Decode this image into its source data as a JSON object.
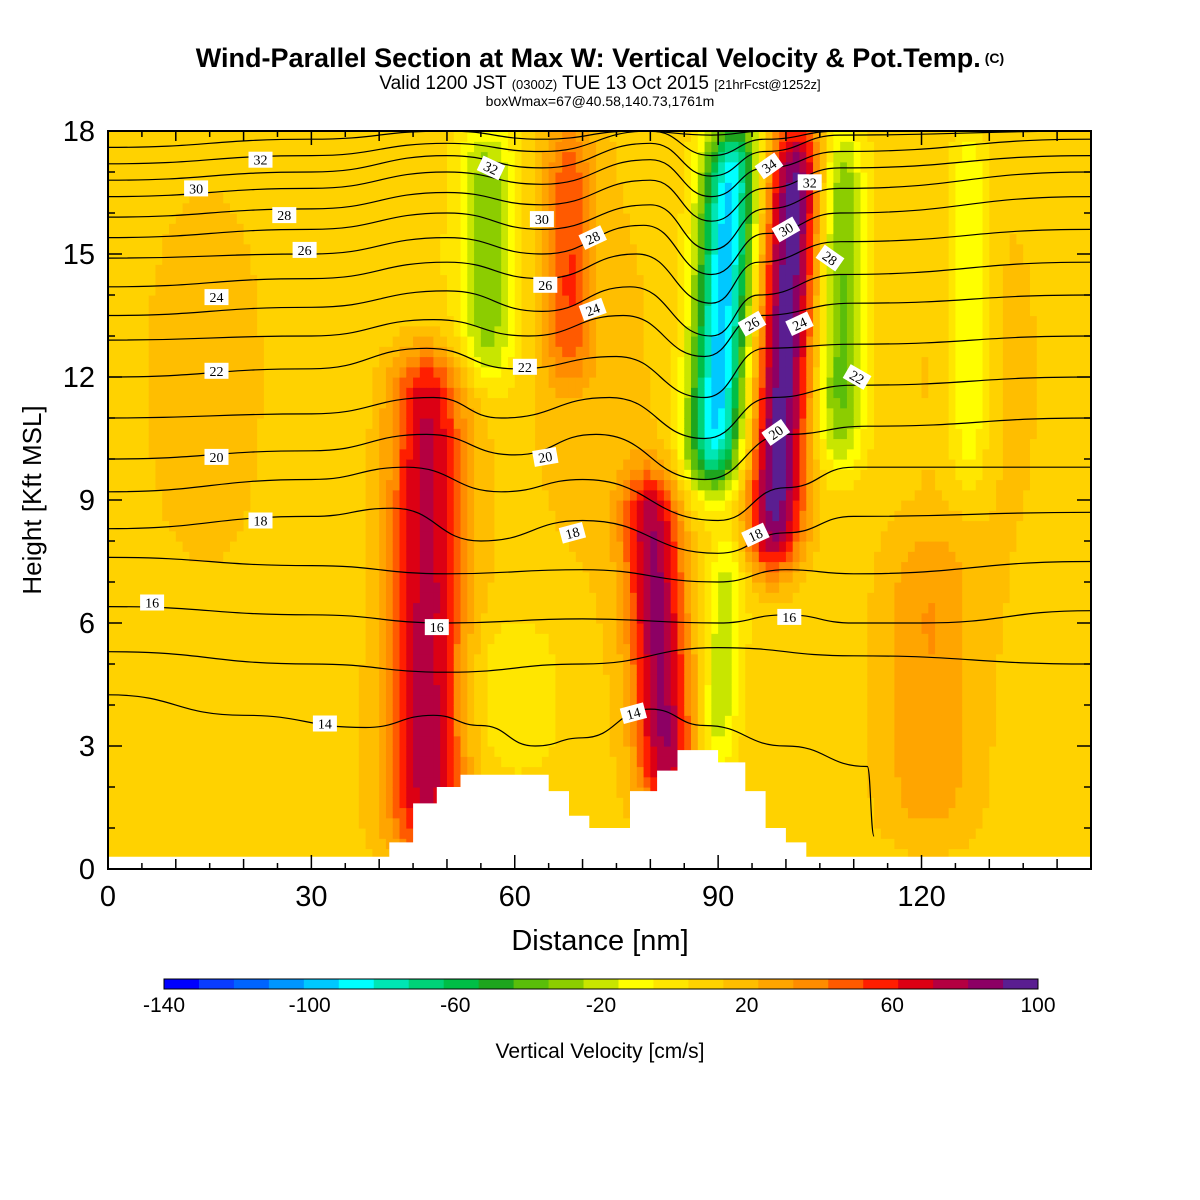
{
  "header": {
    "title": "Wind-Parallel Section at Max W: Vertical Velocity & Pot.Temp.",
    "copyright": "(C)",
    "valid_prefix": "Valid 1200 JST",
    "valid_utc": "(0300Z)",
    "valid_date": "TUE 13 Oct 2015",
    "forecast": "[21hrFcst@1252z]",
    "box_wmax": "boxWmax=67@40.58,140.73,1761m"
  },
  "chart_data": {
    "type": "heatmap",
    "title": "Wind-Parallel Section at Max W: Vertical Velocity & Pot.Temp.",
    "xlabel": "Distance [nm]",
    "ylabel": "Height [Kft MSL]",
    "xlim": [
      0,
      145
    ],
    "ylim": [
      0,
      18
    ],
    "x_ticks": [
      0,
      30,
      60,
      90,
      120
    ],
    "y_ticks": [
      0,
      3,
      6,
      9,
      12,
      15,
      18
    ],
    "colorbar": {
      "label": "Vertical Velocity [cm/s]",
      "tick_labels": [
        "-140",
        "-100",
        "-60",
        "-20",
        "20",
        "60",
        "100"
      ],
      "tick_values": [
        -140,
        -100,
        -60,
        -20,
        20,
        60,
        100
      ],
      "range": [
        -140,
        100
      ],
      "levels": [
        -140,
        -130,
        -120,
        -110,
        -100,
        -90,
        -80,
        -70,
        -60,
        -50,
        -40,
        -30,
        -20,
        -10,
        0,
        10,
        20,
        30,
        40,
        50,
        60,
        70,
        80,
        90,
        100
      ],
      "colors": [
        "#0000ff",
        "#0a3cff",
        "#0064ff",
        "#0096ff",
        "#00c8ff",
        "#00ffff",
        "#00e6b4",
        "#00d278",
        "#00be46",
        "#1ea51e",
        "#5abe0a",
        "#8ccd00",
        "#c8e600",
        "#ffff00",
        "#ffe600",
        "#ffd200",
        "#ffbe00",
        "#ffa500",
        "#ff8c00",
        "#ff5a00",
        "#ff1e00",
        "#dc0014",
        "#b40041",
        "#8c0064",
        "#5a1e91"
      ]
    },
    "terrain_profile": [
      [
        0,
        0.3
      ],
      [
        41.5,
        0.3
      ],
      [
        41.5,
        0.65
      ],
      [
        45,
        0.65
      ],
      [
        45,
        1.6
      ],
      [
        48.5,
        1.6
      ],
      [
        48.5,
        2.0
      ],
      [
        52,
        2.0
      ],
      [
        52,
        2.3
      ],
      [
        65,
        2.3
      ],
      [
        65,
        1.9
      ],
      [
        68,
        1.9
      ],
      [
        68,
        1.3
      ],
      [
        71,
        1.3
      ],
      [
        71,
        1.0
      ],
      [
        77,
        1.0
      ],
      [
        77,
        1.9
      ],
      [
        81,
        1.9
      ],
      [
        81,
        2.4
      ],
      [
        84,
        2.4
      ],
      [
        84,
        2.9
      ],
      [
        90,
        2.9
      ],
      [
        90,
        2.6
      ],
      [
        94,
        2.6
      ],
      [
        94,
        1.9
      ],
      [
        97,
        1.9
      ],
      [
        97,
        1.0
      ],
      [
        100,
        1.0
      ],
      [
        100,
        0.65
      ],
      [
        103,
        0.65
      ],
      [
        103,
        0.3
      ],
      [
        145,
        0.3
      ]
    ],
    "velocity_features": [
      {
        "x": 47,
        "h_lo": 0.5,
        "h_hi": 12.5,
        "w": 4.0,
        "v": 70
      },
      {
        "x": 80,
        "h_lo": 1.5,
        "h_hi": 9.5,
        "w": 3.0,
        "v": 75
      },
      {
        "x": 98.5,
        "h_lo": 7.5,
        "h_hi": 18,
        "w": 3.0,
        "v": 95
      },
      {
        "x": 68,
        "h_lo": 12,
        "h_hi": 18,
        "w": 2.5,
        "v": 40
      },
      {
        "x": 121,
        "h_lo": 1,
        "h_hi": 8,
        "w": 4.5,
        "v": 22
      },
      {
        "x": 89,
        "h_lo": 9.5,
        "h_hi": 18,
        "w": 3.0,
        "v": -110
      },
      {
        "x": 56,
        "h_lo": 12,
        "h_hi": 18,
        "w": 3.0,
        "v": -45
      },
      {
        "x": 108,
        "h_lo": 10,
        "h_hi": 18,
        "w": 2.5,
        "v": -48
      },
      {
        "x": 127,
        "h_lo": 9.5,
        "h_hi": 18,
        "w": 2.0,
        "v": -30
      },
      {
        "x": 60,
        "h_lo": 2.5,
        "h_hi": 6,
        "w": 5.0,
        "v": -18
      },
      {
        "x": 92,
        "h_lo": 2.5,
        "h_hi": 8,
        "w": 2.0,
        "v": -35
      }
    ],
    "theta_contours": [
      {
        "theta": 14,
        "points": [
          [
            0,
            4.25
          ],
          [
            20,
            3.75
          ],
          [
            38,
            3.45
          ],
          [
            48,
            3.75
          ],
          [
            55,
            3.5
          ],
          [
            63,
            3.0
          ],
          [
            70,
            3.2
          ],
          [
            80,
            3.9
          ],
          [
            88,
            3.5
          ],
          [
            100,
            3.0
          ],
          [
            112,
            2.5
          ],
          [
            113,
            0.8
          ]
        ]
      },
      {
        "theta": 15,
        "points": [
          [
            0,
            5.3
          ],
          [
            30,
            5.0
          ],
          [
            50,
            4.8
          ],
          [
            70,
            5.0
          ],
          [
            90,
            5.4
          ],
          [
            110,
            5.2
          ],
          [
            145,
            5.0
          ]
        ]
      },
      {
        "theta": 16,
        "points": [
          [
            0,
            6.4
          ],
          [
            30,
            6.2
          ],
          [
            50,
            6.0
          ],
          [
            70,
            6.1
          ],
          [
            90,
            6.0
          ],
          [
            100,
            6.2
          ],
          [
            110,
            6.0
          ],
          [
            120,
            6.0
          ],
          [
            145,
            6.3
          ]
        ]
      },
      {
        "theta": 17,
        "points": [
          [
            0,
            7.6
          ],
          [
            30,
            7.4
          ],
          [
            50,
            7.2
          ],
          [
            70,
            7.3
          ],
          [
            90,
            7.0
          ],
          [
            100,
            7.3
          ],
          [
            110,
            7.2
          ],
          [
            145,
            7.5
          ]
        ]
      },
      {
        "theta": 18,
        "points": [
          [
            0,
            8.3
          ],
          [
            30,
            8.6
          ],
          [
            42,
            8.8
          ],
          [
            55,
            8.0
          ],
          [
            70,
            8.5
          ],
          [
            90,
            7.7
          ],
          [
            100,
            8.2
          ],
          [
            110,
            8.6
          ],
          [
            145,
            8.7
          ]
        ]
      },
      {
        "theta": 19,
        "points": [
          [
            0,
            9.2
          ],
          [
            30,
            9.5
          ],
          [
            44,
            9.8
          ],
          [
            58,
            9.2
          ],
          [
            70,
            9.5
          ],
          [
            90,
            8.5
          ],
          [
            100,
            9.3
          ],
          [
            110,
            9.8
          ],
          [
            145,
            9.8
          ]
        ]
      },
      {
        "theta": 20,
        "points": [
          [
            0,
            10.0
          ],
          [
            30,
            10.2
          ],
          [
            47,
            10.6
          ],
          [
            60,
            10.1
          ],
          [
            72,
            10.6
          ],
          [
            88,
            9.5
          ],
          [
            100,
            10.6
          ],
          [
            112,
            10.8
          ],
          [
            145,
            11.0
          ]
        ]
      },
      {
        "theta": 21,
        "points": [
          [
            0,
            11.0
          ],
          [
            30,
            11.1
          ],
          [
            48,
            11.5
          ],
          [
            58,
            11.0
          ],
          [
            74,
            11.5
          ],
          [
            88,
            10.5
          ],
          [
            98,
            11.5
          ],
          [
            110,
            11.8
          ],
          [
            145,
            12.0
          ]
        ]
      },
      {
        "theta": 22,
        "points": [
          [
            0,
            12.0
          ],
          [
            30,
            12.2
          ],
          [
            47,
            12.7
          ],
          [
            60,
            12.2
          ],
          [
            75,
            12.5
          ],
          [
            88,
            11.5
          ],
          [
            97,
            12.7
          ],
          [
            110,
            12.8
          ],
          [
            145,
            13.0
          ]
        ]
      },
      {
        "theta": 23,
        "points": [
          [
            0,
            12.9
          ],
          [
            30,
            13.0
          ],
          [
            48,
            13.4
          ],
          [
            62,
            13.0
          ],
          [
            76,
            13.5
          ],
          [
            88,
            12.5
          ],
          [
            96,
            13.5
          ],
          [
            110,
            13.8
          ],
          [
            145,
            14.0
          ]
        ]
      },
      {
        "theta": 24,
        "points": [
          [
            0,
            13.5
          ],
          [
            30,
            13.7
          ],
          [
            50,
            14.1
          ],
          [
            64,
            13.6
          ],
          [
            77,
            14.2
          ],
          [
            89,
            13.0
          ],
          [
            96,
            14.0
          ],
          [
            108,
            14.5
          ],
          [
            145,
            14.8
          ]
        ]
      },
      {
        "theta": 25,
        "points": [
          [
            0,
            14.2
          ],
          [
            30,
            14.4
          ],
          [
            50,
            14.8
          ],
          [
            64,
            14.4
          ],
          [
            78,
            15.0
          ],
          [
            89,
            13.8
          ],
          [
            96,
            14.8
          ],
          [
            108,
            15.3
          ],
          [
            145,
            15.6
          ]
        ]
      },
      {
        "theta": 26,
        "points": [
          [
            0,
            14.9
          ],
          [
            30,
            15.0
          ],
          [
            50,
            15.4
          ],
          [
            64,
            15.0
          ],
          [
            79,
            15.7
          ],
          [
            89,
            14.5
          ],
          [
            97,
            15.5
          ],
          [
            108,
            16.0
          ],
          [
            145,
            16.4
          ]
        ]
      },
      {
        "theta": 27,
        "points": [
          [
            0,
            15.4
          ],
          [
            30,
            15.6
          ],
          [
            50,
            16.0
          ],
          [
            64,
            15.6
          ],
          [
            80,
            16.2
          ],
          [
            89,
            15.1
          ],
          [
            97,
            16.1
          ],
          [
            108,
            16.6
          ],
          [
            145,
            17.0
          ]
        ]
      },
      {
        "theta": 28,
        "points": [
          [
            0,
            15.9
          ],
          [
            30,
            16.1
          ],
          [
            50,
            16.5
          ],
          [
            64,
            16.2
          ],
          [
            80,
            16.8
          ],
          [
            89,
            15.8
          ],
          [
            97,
            16.6
          ],
          [
            108,
            17.1
          ],
          [
            145,
            17.4
          ]
        ]
      },
      {
        "theta": 29,
        "points": [
          [
            0,
            16.4
          ],
          [
            30,
            16.6
          ],
          [
            50,
            17.0
          ],
          [
            64,
            16.7
          ],
          [
            80,
            17.3
          ],
          [
            89,
            16.4
          ],
          [
            97,
            17.1
          ],
          [
            108,
            17.5
          ],
          [
            145,
            17.8
          ]
        ]
      },
      {
        "theta": 30,
        "points": [
          [
            0,
            16.8
          ],
          [
            30,
            17.0
          ],
          [
            50,
            17.4
          ],
          [
            64,
            17.1
          ],
          [
            80,
            17.7
          ],
          [
            89,
            16.9
          ],
          [
            97,
            17.5
          ],
          [
            108,
            17.9
          ],
          [
            145,
            18.0
          ]
        ]
      },
      {
        "theta": 31,
        "points": [
          [
            0,
            17.2
          ],
          [
            30,
            17.4
          ],
          [
            50,
            17.7
          ],
          [
            64,
            17.5
          ],
          [
            80,
            18.0
          ],
          [
            89,
            17.4
          ],
          [
            97,
            17.8
          ],
          [
            108,
            18.0
          ]
        ]
      },
      {
        "theta": 32,
        "points": [
          [
            0,
            17.6
          ],
          [
            30,
            17.8
          ],
          [
            50,
            18.0
          ],
          [
            64,
            17.8
          ],
          [
            78,
            18.0
          ],
          [
            89,
            17.9
          ],
          [
            97,
            18.0
          ]
        ]
      }
    ],
    "contour_labels": [
      {
        "text": "32",
        "x": 22.5,
        "y": 17.3,
        "angle": 0
      },
      {
        "text": "30",
        "x": 13,
        "y": 16.6,
        "angle": 0
      },
      {
        "text": "28",
        "x": 26,
        "y": 15.95,
        "angle": 0
      },
      {
        "text": "26",
        "x": 29,
        "y": 15.1,
        "angle": 0
      },
      {
        "text": "24",
        "x": 16,
        "y": 13.95,
        "angle": 0
      },
      {
        "text": "22",
        "x": 16,
        "y": 12.15,
        "angle": 0
      },
      {
        "text": "20",
        "x": 16,
        "y": 10.05,
        "angle": 0
      },
      {
        "text": "18",
        "x": 22.5,
        "y": 8.5,
        "angle": 0
      },
      {
        "text": "16",
        "x": 6.5,
        "y": 6.5,
        "angle": 0
      },
      {
        "text": "14",
        "x": 32,
        "y": 3.55,
        "angle": 0
      },
      {
        "text": "32",
        "x": 56.5,
        "y": 17.1,
        "angle": 25
      },
      {
        "text": "30",
        "x": 64,
        "y": 15.85,
        "angle": 0
      },
      {
        "text": "28",
        "x": 71.5,
        "y": 15.4,
        "angle": -25
      },
      {
        "text": "26",
        "x": 64.5,
        "y": 14.25,
        "angle": 0
      },
      {
        "text": "24",
        "x": 71.5,
        "y": 13.65,
        "angle": -20
      },
      {
        "text": "22",
        "x": 61.5,
        "y": 12.25,
        "angle": 0
      },
      {
        "text": "20",
        "x": 64.5,
        "y": 10.05,
        "angle": -10
      },
      {
        "text": "18",
        "x": 68.5,
        "y": 8.2,
        "angle": -15
      },
      {
        "text": "16",
        "x": 48.5,
        "y": 5.9,
        "angle": 0
      },
      {
        "text": "14",
        "x": 77.5,
        "y": 3.8,
        "angle": -15
      },
      {
        "text": "34",
        "x": 97.5,
        "y": 17.15,
        "angle": -35
      },
      {
        "text": "32",
        "x": 103.5,
        "y": 16.75,
        "angle": 0
      },
      {
        "text": "30",
        "x": 100,
        "y": 15.6,
        "angle": -30
      },
      {
        "text": "28",
        "x": 106.5,
        "y": 14.9,
        "angle": 35
      },
      {
        "text": "26",
        "x": 95,
        "y": 13.3,
        "angle": -30
      },
      {
        "text": "24",
        "x": 102,
        "y": 13.3,
        "angle": -25
      },
      {
        "text": "22",
        "x": 110.5,
        "y": 12.0,
        "angle": 30
      },
      {
        "text": "20",
        "x": 98.5,
        "y": 10.65,
        "angle": -35
      },
      {
        "text": "18",
        "x": 95.5,
        "y": 8.15,
        "angle": -25
      },
      {
        "text": "16",
        "x": 100.5,
        "y": 6.15,
        "angle": 0
      }
    ]
  }
}
